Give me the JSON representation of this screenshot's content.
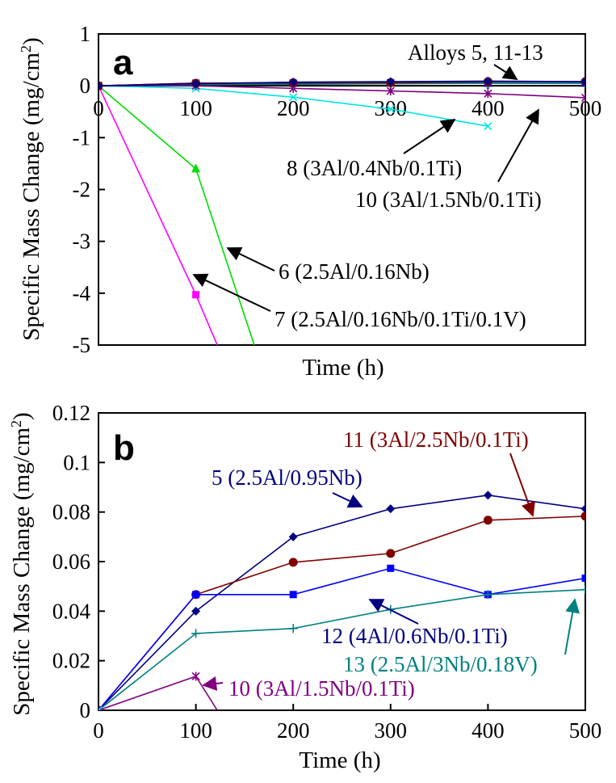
{
  "chart_data": [
    {
      "type": "line",
      "panel_label": "a",
      "xlabel": "Time (h)",
      "ylabel": "Specific Mass Change (mg/cm",
      "ylabel_sup": "2",
      "ylabel_end": ")",
      "xlim": [
        0,
        500
      ],
      "ylim": [
        -5,
        1
      ],
      "xticks": [
        "0",
        "100",
        "200",
        "300",
        "400",
        "500"
      ],
      "yticks": [
        "1",
        "0",
        "-1",
        "-2",
        "-3",
        "-4",
        "-5"
      ],
      "grid": false,
      "series": [
        {
          "name": "6 (2.5Al/0.16Nb)",
          "color": "#00dd00",
          "marker": "triangle",
          "x": [
            0,
            100,
            160
          ],
          "y": [
            0,
            -1.6,
            -5.0
          ]
        },
        {
          "name": "7 (2.5Al/0.16Nb/0.1Ti/0.1V)",
          "color": "#ff00ff",
          "marker": "square",
          "x": [
            0,
            100,
            122
          ],
          "y": [
            0,
            -4.03,
            -5.0
          ]
        },
        {
          "name": "8 (3Al/0.4Nb/0.1Ti)",
          "color": "#00e5e5",
          "marker": "x",
          "x": [
            0,
            100,
            200,
            300,
            400
          ],
          "y": [
            0,
            -0.05,
            -0.22,
            -0.45,
            -0.78
          ]
        },
        {
          "name": "10 (3Al/1.5Nb/0.1Ti)",
          "color": "#800080",
          "marker": "star",
          "x": [
            0,
            100,
            200,
            300,
            400,
            500
          ],
          "y": [
            0,
            0.0,
            -0.05,
            -0.1,
            -0.15,
            -0.23
          ]
        },
        {
          "name": "12 (4Al/0.6Nb/0.1Ti)",
          "color": "#0000ff",
          "marker": "square",
          "x": [
            0,
            100,
            200,
            300,
            400,
            500
          ],
          "y": [
            0,
            0.05,
            0.05,
            0.06,
            0.05,
            0.05
          ]
        },
        {
          "name": "13 (2.5Al/3Nb/0.18V)",
          "color": "#008080",
          "marker": "plus",
          "x": [
            0,
            100,
            200,
            300,
            400,
            500
          ],
          "y": [
            0,
            0.03,
            0.03,
            0.04,
            0.05,
            0.05
          ]
        },
        {
          "name": "11 (3Al/2.5Nb/0.1Ti)",
          "color": "#800000",
          "marker": "circle",
          "x": [
            0,
            100,
            200,
            300,
            400,
            500
          ],
          "y": [
            0,
            0.05,
            0.06,
            0.06,
            0.08,
            0.08
          ]
        },
        {
          "name": "5 (2.5Al/0.95Nb)",
          "color": "#000080",
          "marker": "diamond",
          "x": [
            0,
            100,
            200,
            300,
            400,
            500
          ],
          "y": [
            0,
            0.04,
            0.07,
            0.08,
            0.09,
            0.08
          ]
        }
      ],
      "annotations": [
        {
          "text": "Alloys 5, 11-13",
          "color": "#000000"
        },
        {
          "text": "8 (3Al/0.4Nb/0.1Ti)",
          "color": "#000000"
        },
        {
          "text": "10 (3Al/1.5Nb/0.1Ti)",
          "color": "#000000"
        },
        {
          "text": "6 (2.5Al/0.16Nb)",
          "color": "#000000"
        },
        {
          "text": "7 (2.5Al/0.16Nb/0.1Ti/0.1V)",
          "color": "#000000"
        }
      ]
    },
    {
      "type": "line",
      "panel_label": "b",
      "xlabel": "Time (h)",
      "ylabel": "Specific Mass Change (mg/cm",
      "ylabel_sup": "2",
      "ylabel_end": ")",
      "xlim": [
        0,
        500
      ],
      "ylim": [
        0,
        0.12
      ],
      "xticks": [
        "0",
        "100",
        "200",
        "300",
        "400",
        "500"
      ],
      "yticks": [
        "0.12",
        "0.1",
        "0.08",
        "0.06",
        "0.04",
        "0.02",
        "0"
      ],
      "grid": false,
      "series": [
        {
          "name": "5 (2.5Al/0.95Nb)",
          "color": "#000080",
          "marker": "diamond",
          "x": [
            0,
            100,
            200,
            300,
            400,
            500
          ],
          "y": [
            0,
            0.04,
            0.07,
            0.0813,
            0.0868,
            0.0813
          ]
        },
        {
          "name": "11 (3Al/2.5Nb/0.1Ti)",
          "color": "#800000",
          "marker": "circle",
          "x": [
            0,
            100,
            200,
            300,
            400,
            500
          ],
          "y": [
            0,
            0.0467,
            0.0597,
            0.0633,
            0.0767,
            0.0783
          ]
        },
        {
          "name": "12 (4Al/0.6Nb/0.1Ti)",
          "color": "#0000ff",
          "marker": "square",
          "x": [
            0,
            100,
            200,
            300,
            400,
            500
          ],
          "y": [
            0,
            0.0467,
            0.0467,
            0.0573,
            0.0467,
            0.0533
          ]
        },
        {
          "name": "13 (2.5Al/3Nb/0.18V)",
          "color": "#008080",
          "marker": "plus",
          "x": [
            0,
            100,
            200,
            300,
            400,
            500
          ],
          "y": [
            0,
            0.031,
            0.033,
            0.0407,
            0.0467,
            0.0487
          ]
        },
        {
          "name": "10 (3Al/1.5Nb/0.1Ti)",
          "color": "#800080",
          "marker": "star",
          "x": [
            0,
            100,
            122
          ],
          "y": [
            0,
            0.0137,
            0.0
          ]
        },
        {
          "name": "8 (3Al/0.4Nb/0.1Ti)",
          "color": "#00e5e5",
          "marker": "x",
          "x": [
            0,
            8
          ],
          "y": [
            0,
            -0.001
          ]
        }
      ],
      "annotations": [
        {
          "text": "11 (3Al/2.5Nb/0.1Ti)",
          "color": "#800000"
        },
        {
          "text": "5 (2.5Al/0.95Nb)",
          "color": "#000080"
        },
        {
          "text": "12 (4Al/0.6Nb/0.1Ti)",
          "color": "#000080"
        },
        {
          "text": "13 (2.5Al/3Nb/0.18V)",
          "color": "#008080"
        },
        {
          "text": "10 (3Al/1.5Nb/0.1Ti)",
          "color": "#800080"
        }
      ]
    }
  ]
}
